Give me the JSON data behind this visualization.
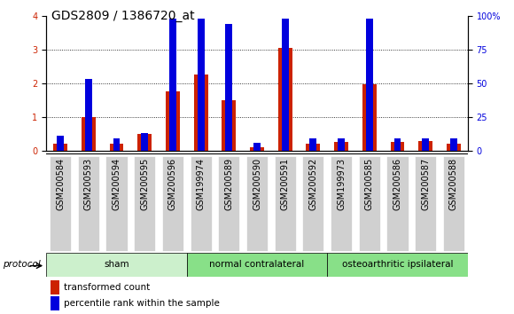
{
  "title": "GDS2809 / 1386720_at",
  "samples": [
    "GSM200584",
    "GSM200593",
    "GSM200594",
    "GSM200595",
    "GSM200596",
    "GSM199974",
    "GSM200589",
    "GSM200590",
    "GSM200591",
    "GSM200592",
    "GSM199973",
    "GSM200585",
    "GSM200586",
    "GSM200587",
    "GSM200588"
  ],
  "red_values": [
    0.2,
    1.0,
    0.2,
    0.5,
    1.75,
    2.25,
    1.5,
    0.1,
    3.05,
    0.2,
    0.25,
    1.97,
    0.25,
    0.3,
    0.2
  ],
  "blue_values_pct": [
    11,
    53,
    9,
    13,
    98,
    98,
    94,
    6,
    98,
    9,
    9,
    98,
    9,
    9,
    9
  ],
  "groups": [
    {
      "label": "sham",
      "start": 0,
      "end": 5
    },
    {
      "label": "normal contralateral",
      "start": 5,
      "end": 10
    },
    {
      "label": "osteoarthritic ipsilateral",
      "start": 10,
      "end": 15
    }
  ],
  "ylim_left": [
    0,
    4
  ],
  "ylim_right": [
    0,
    100
  ],
  "yticks_left": [
    0,
    1,
    2,
    3,
    4
  ],
  "yticks_right": [
    0,
    25,
    50,
    75,
    100
  ],
  "yticklabels_right": [
    "0",
    "25",
    "50",
    "75",
    "100%"
  ],
  "red_color": "#cc2200",
  "blue_color": "#0000dd",
  "background_color": "#ffffff",
  "xtick_bg_color": "#d0d0d0",
  "protocol_label": "protocol",
  "legend_red": "transformed count",
  "legend_blue": "percentile rank within the sample",
  "group_color_light": "#ccf0cc",
  "group_color_dark": "#88e088",
  "title_fontsize": 10,
  "tick_fontsize": 7,
  "bar_width": 0.5,
  "blue_bar_width": 0.25
}
